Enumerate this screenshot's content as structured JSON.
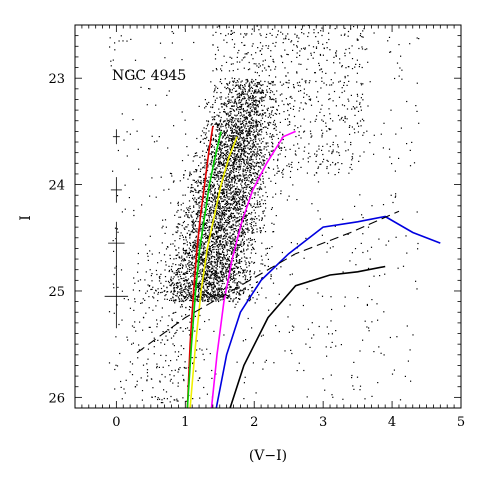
{
  "chart_data": {
    "type": "scatter",
    "annotation": "NGC 4945",
    "xlabel": "(V−I)",
    "ylabel": "I",
    "xlim": [
      -0.6,
      5.0
    ],
    "ylim": [
      26.1,
      22.5
    ],
    "y_inverted": true,
    "xticks": [
      "0",
      "1",
      "2",
      "3",
      "4",
      "5"
    ],
    "yticks": [
      "23",
      "24",
      "25",
      "26"
    ],
    "xtick_values": [
      0,
      1,
      2,
      3,
      4,
      5
    ],
    "ytick_values": [
      23,
      24,
      25,
      26
    ],
    "grid": false,
    "scatter_description": "Dense cloud of several thousand stars concentrated at (V−I) 1.2–2.5, I 23.0–25.0, with a sparser halo out to (V−I) 4 and up to I 22.5.",
    "error_bars": [
      {
        "x": 0.0,
        "y": 23.55,
        "xerr": 0.05,
        "yerr": 0.07
      },
      {
        "x": 0.0,
        "y": 24.05,
        "xerr": 0.08,
        "yerr": 0.12
      },
      {
        "x": 0.0,
        "y": 24.55,
        "xerr": 0.12,
        "yerr": 0.2
      },
      {
        "x": 0.0,
        "y": 25.05,
        "xerr": 0.17,
        "yerr": 0.3
      }
    ],
    "series": [
      {
        "color": "#e00000",
        "style": "solid",
        "x": [
          1.03,
          1.07,
          1.12,
          1.17,
          1.22,
          1.28,
          1.34,
          1.4
        ],
        "y": [
          26.1,
          25.5,
          25.0,
          24.6,
          24.3,
          24.0,
          23.7,
          23.45
        ]
      },
      {
        "color": "#00d000",
        "style": "solid",
        "x": [
          1.03,
          1.09,
          1.15,
          1.21,
          1.28,
          1.35,
          1.43,
          1.52
        ],
        "y": [
          26.1,
          25.5,
          25.0,
          24.6,
          24.3,
          24.0,
          23.75,
          23.5
        ]
      },
      {
        "color": "#f0f000",
        "style": "solid",
        "x": [
          1.07,
          1.15,
          1.23,
          1.32,
          1.42,
          1.52,
          1.63,
          1.75
        ],
        "y": [
          26.1,
          25.5,
          25.0,
          24.6,
          24.3,
          24.0,
          23.75,
          23.55
        ]
      },
      {
        "color": "#ff00ff",
        "style": "solid",
        "x": [
          1.38,
          1.46,
          1.56,
          1.68,
          1.82,
          1.98,
          2.18,
          2.42,
          2.6
        ],
        "y": [
          26.1,
          25.6,
          25.1,
          24.7,
          24.35,
          24.05,
          23.8,
          23.55,
          23.5
        ]
      },
      {
        "color": "#0000e0",
        "style": "solid",
        "x": [
          1.45,
          1.6,
          1.8,
          2.1,
          2.5,
          3.0,
          3.5,
          3.9,
          4.3,
          4.7
        ],
        "y": [
          26.1,
          25.6,
          25.2,
          24.9,
          24.65,
          24.4,
          24.35,
          24.3,
          24.45,
          24.55
        ]
      },
      {
        "color": "#000000",
        "style": "solid",
        "x": [
          1.65,
          1.85,
          2.2,
          2.6,
          3.1,
          3.5,
          3.9
        ],
        "y": [
          26.1,
          25.7,
          25.25,
          24.95,
          24.85,
          24.82,
          24.77
        ]
      },
      {
        "color": "#000000",
        "style": "dashed",
        "x": [
          0.3,
          1.0,
          1.8,
          2.6,
          3.4,
          4.1
        ],
        "y": [
          25.58,
          25.25,
          24.95,
          24.65,
          24.45,
          24.25
        ]
      }
    ]
  }
}
